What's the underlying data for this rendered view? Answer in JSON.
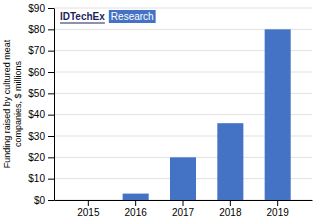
{
  "chart_data": {
    "type": "bar",
    "categories": [
      "2015",
      "2016",
      "2017",
      "2018",
      "2019"
    ],
    "values": [
      0,
      3,
      20,
      36,
      80
    ],
    "color": "#4472C4",
    "ylabel": "Funding raised by cultured meat\ncompanies, $ millions",
    "ylim": [
      0,
      90
    ],
    "yticks": [
      {
        "value": 0,
        "label": "$0"
      },
      {
        "value": 10,
        "label": "$10"
      },
      {
        "value": 20,
        "label": "$20"
      },
      {
        "value": 30,
        "label": "$30"
      },
      {
        "value": 40,
        "label": "$40"
      },
      {
        "value": 50,
        "label": "$50"
      },
      {
        "value": 60,
        "label": "$60"
      },
      {
        "value": 70,
        "label": "$70"
      },
      {
        "value": 80,
        "label": "$80"
      },
      {
        "value": 90,
        "label": "$90"
      }
    ],
    "grid": true,
    "annotations": [
      {
        "text": "IDTechEx",
        "color": "#1f1f5e"
      },
      {
        "text": "Research",
        "color": "#ffffff"
      }
    ]
  }
}
